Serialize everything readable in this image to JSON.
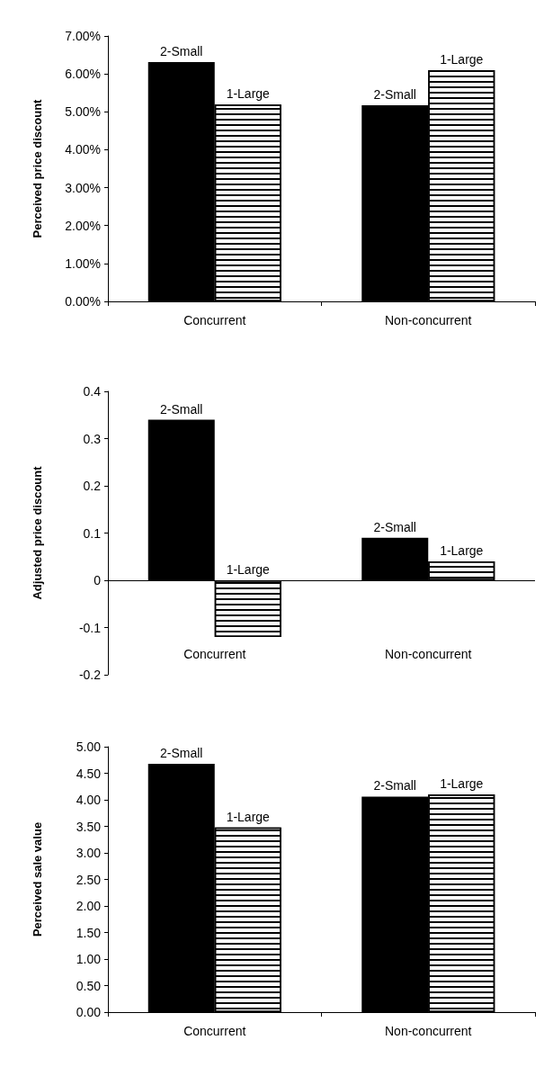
{
  "chart_data": [
    {
      "type": "bar",
      "ylabel": "Perceived price discount",
      "categories": [
        "Concurrent",
        "Non-concurrent"
      ],
      "series": [
        {
          "name": "2-Small",
          "color": "#000000",
          "values": [
            6.31,
            5.17
          ]
        },
        {
          "name": "1-Large",
          "color": "#ffffff",
          "values": [
            5.19,
            6.1
          ]
        }
      ],
      "ylim": [
        0,
        7
      ],
      "yticks": [
        {
          "value": 0,
          "label": "0.00%"
        },
        {
          "value": 1,
          "label": "1.00%"
        },
        {
          "value": 2,
          "label": "2.00%"
        },
        {
          "value": 3,
          "label": "3.00%"
        },
        {
          "value": 4,
          "label": "4.00%"
        },
        {
          "value": 5,
          "label": "5.00%"
        },
        {
          "value": 6,
          "label": "6.00%"
        },
        {
          "value": 7,
          "label": "7.00%"
        }
      ],
      "grid": false,
      "legend": false
    },
    {
      "type": "bar",
      "ylabel": "Adjusted price discount",
      "categories": [
        "Concurrent",
        "Non-concurrent"
      ],
      "series": [
        {
          "name": "2-Small",
          "color": "#000000",
          "values": [
            0.34,
            0.09
          ]
        },
        {
          "name": "1-Large",
          "color": "#ffffff",
          "values": [
            -0.12,
            0.04
          ]
        }
      ],
      "ylim": [
        -0.2,
        0.4
      ],
      "yticks": [
        -0.2,
        -0.1,
        0,
        0.1,
        0.2,
        0.3,
        0.4
      ],
      "ref_lines": [
        {
          "axis": "y",
          "value": 0,
          "color": "#000000"
        }
      ],
      "grid": false,
      "legend": false
    },
    {
      "type": "bar",
      "ylabel": "Perceived sale value",
      "categories": [
        "Concurrent",
        "Non-concurrent"
      ],
      "series": [
        {
          "name": "2-Small",
          "color": "#000000",
          "values": [
            4.68,
            4.06
          ]
        },
        {
          "name": "1-Large",
          "color": "#ffffff",
          "values": [
            3.48,
            4.1
          ]
        }
      ],
      "ylim": [
        0,
        5
      ],
      "yticks": [
        {
          "value": 0,
          "label": "0.00"
        },
        {
          "value": 0.5,
          "label": "0.50"
        },
        {
          "value": 1,
          "label": "1.00"
        },
        {
          "value": 1.5,
          "label": "1.50"
        },
        {
          "value": 2,
          "label": "2.00"
        },
        {
          "value": 2.5,
          "label": "2.50"
        },
        {
          "value": 3,
          "label": "3.00"
        },
        {
          "value": 3.5,
          "label": "3.50"
        },
        {
          "value": 4,
          "label": "4.00"
        },
        {
          "value": 4.5,
          "label": "4.50"
        },
        {
          "value": 5,
          "label": "5.00"
        }
      ],
      "grid": false,
      "legend": false
    }
  ]
}
